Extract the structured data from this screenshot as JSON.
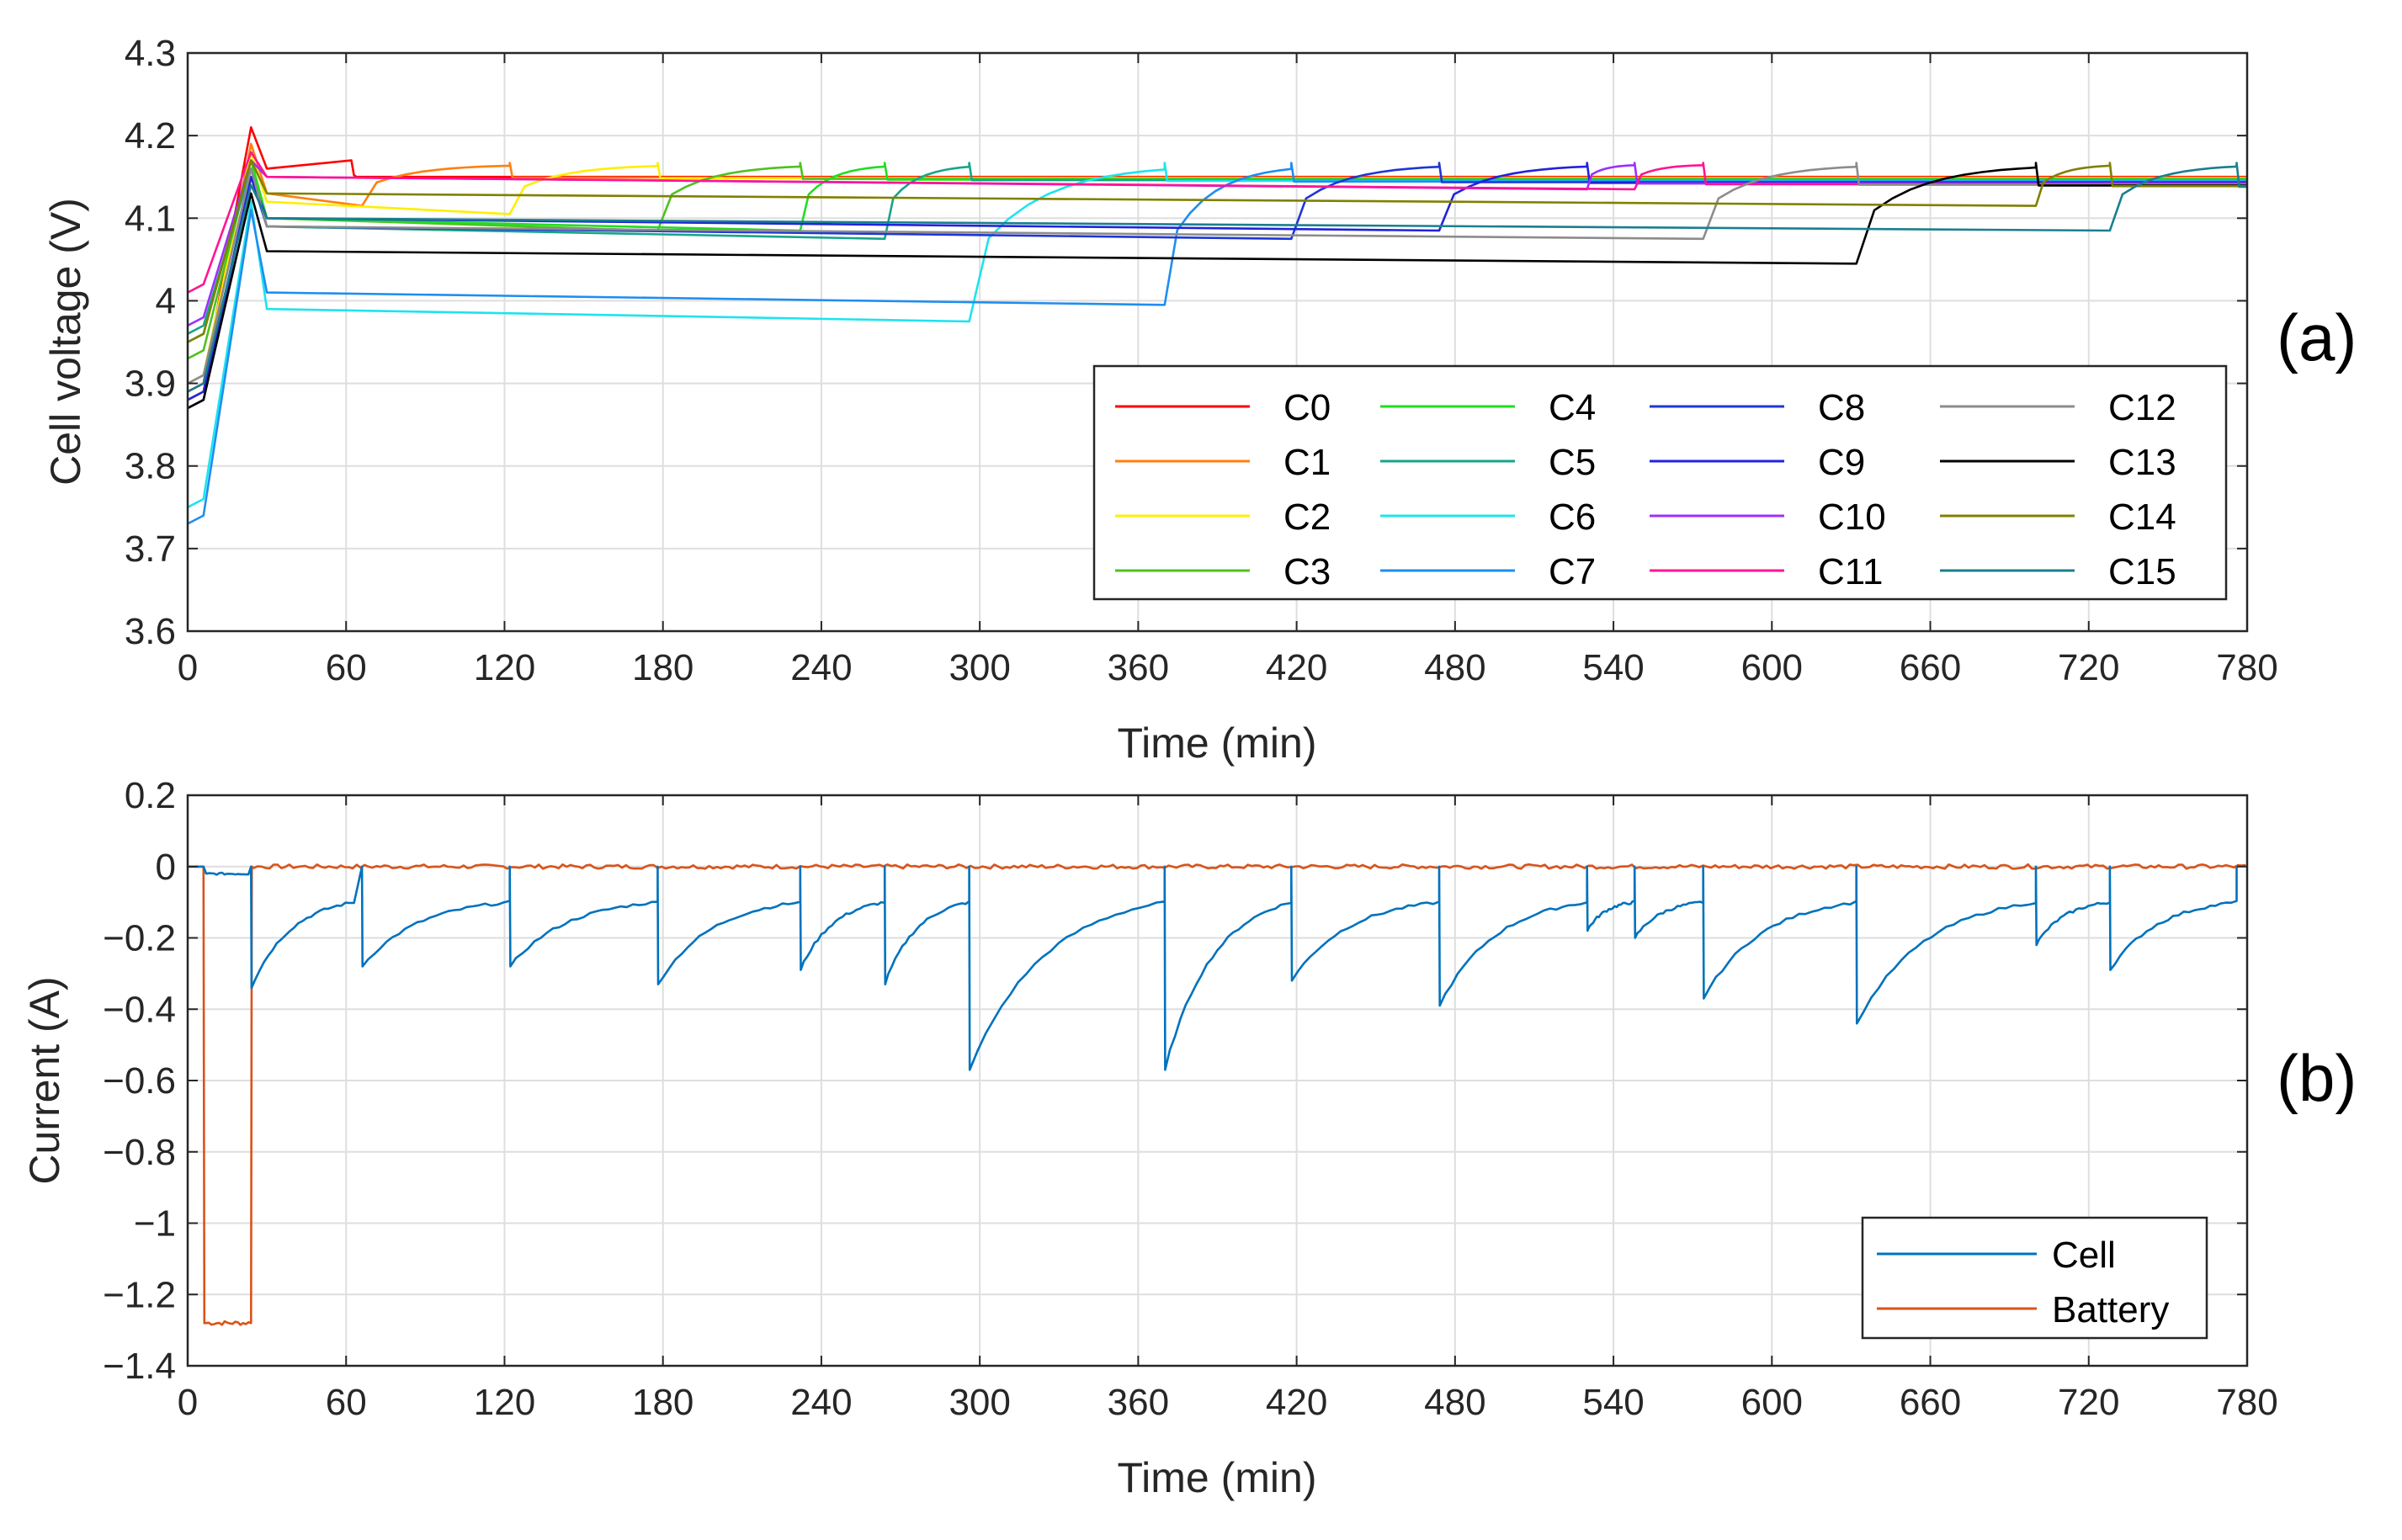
{
  "chart_data": [
    {
      "type": "line",
      "panel_label": "(a)",
      "xlabel": "Time (min)",
      "ylabel": "Cell voltage (V)",
      "xlim": [
        0,
        780
      ],
      "ylim": [
        3.6,
        4.3
      ],
      "xticks": [
        0,
        60,
        120,
        180,
        240,
        300,
        360,
        420,
        480,
        540,
        600,
        660,
        720,
        780
      ],
      "xtick_labels": [
        "0",
        "60",
        "120",
        "180",
        "240",
        "300",
        "360",
        "420",
        "480",
        "540",
        "600",
        "660",
        "720",
        "780"
      ],
      "yticks": [
        3.6,
        3.7,
        3.8,
        3.9,
        4.0,
        4.1,
        4.2,
        4.3
      ],
      "ytick_labels": [
        "3.6",
        "3.7",
        "3.8",
        "3.9",
        "4",
        "4.1",
        "4.2",
        "4.3"
      ],
      "grid": true,
      "legend_location": "lower-right",
      "legend_columns": 4,
      "series": [
        {
          "name": "C0",
          "color": "#ff0000",
          "start": 3.89,
          "peak": 4.21,
          "settle": 4.15,
          "charge_starts": [],
          "charge_ends": [
            63
          ]
        },
        {
          "name": "C1",
          "color": "#ff7f0e",
          "start": 3.88,
          "peak": 4.19,
          "settle": 4.12,
          "charge_starts": [
            66
          ],
          "charge_ends": [
            122
          ]
        },
        {
          "name": "C2",
          "color": "#ffee00",
          "start": 3.9,
          "peak": 4.18,
          "settle": 4.11,
          "charge_starts": [
            122
          ],
          "charge_ends": [
            178
          ]
        },
        {
          "name": "C3",
          "color": "#4dc21f",
          "start": 3.93,
          "peak": 4.17,
          "settle": 4.09,
          "charge_starts": [
            178
          ],
          "charge_ends": [
            232
          ]
        },
        {
          "name": "C4",
          "color": "#22dd22",
          "start": 3.95,
          "peak": 4.17,
          "settle": 4.09,
          "charge_starts": [
            232
          ],
          "charge_ends": [
            264
          ]
        },
        {
          "name": "C5",
          "color": "#17a589",
          "start": 3.96,
          "peak": 4.16,
          "settle": 4.08,
          "charge_starts": [
            264
          ],
          "charge_ends": [
            296
          ]
        },
        {
          "name": "C6",
          "color": "#1ee3ee",
          "start": 3.75,
          "peak": 4.12,
          "settle": 3.98,
          "charge_starts": [
            296
          ],
          "charge_ends": [
            370
          ]
        },
        {
          "name": "C7",
          "color": "#1f8df0",
          "start": 3.73,
          "peak": 4.11,
          "settle": 4.0,
          "charge_starts": [
            370
          ],
          "charge_ends": [
            418
          ]
        },
        {
          "name": "C8",
          "color": "#1f36d6",
          "start": 3.87,
          "peak": 4.15,
          "settle": 4.08,
          "charge_starts": [
            418
          ],
          "charge_ends": [
            474
          ]
        },
        {
          "name": "C9",
          "color": "#2222dd",
          "start": 3.88,
          "peak": 4.15,
          "settle": 4.09,
          "charge_starts": [
            474
          ],
          "charge_ends": [
            530
          ]
        },
        {
          "name": "C10",
          "color": "#9b30ff",
          "start": 3.97,
          "peak": 4.17,
          "settle": 4.14,
          "charge_starts": [
            530
          ],
          "charge_ends": [
            548
          ]
        },
        {
          "name": "C11",
          "color": "#ff1493",
          "start": 4.01,
          "peak": 4.18,
          "settle": 4.14,
          "charge_starts": [
            548
          ],
          "charge_ends": [
            574
          ]
        },
        {
          "name": "C12",
          "color": "#8c8c8c",
          "start": 3.9,
          "peak": 4.16,
          "settle": 4.08,
          "charge_starts": [
            574
          ],
          "charge_ends": [
            632
          ]
        },
        {
          "name": "C13",
          "color": "#000000",
          "start": 3.87,
          "peak": 4.13,
          "settle": 4.05,
          "charge_starts": [
            632
          ],
          "charge_ends": [
            700
          ]
        },
        {
          "name": "C14",
          "color": "#808000",
          "start": 3.95,
          "peak": 4.17,
          "settle": 4.12,
          "charge_starts": [
            700
          ],
          "charge_ends": [
            728
          ]
        },
        {
          "name": "C15",
          "color": "#1a7f8e",
          "start": 3.89,
          "peak": 4.14,
          "settle": 4.09,
          "charge_starts": [
            728
          ],
          "charge_ends": [
            776
          ]
        }
      ]
    },
    {
      "type": "line",
      "panel_label": "(b)",
      "xlabel": "Time (min)",
      "ylabel": "Current (A)",
      "xlim": [
        0,
        780
      ],
      "ylim": [
        -1.4,
        0.2
      ],
      "xticks": [
        0,
        60,
        120,
        180,
        240,
        300,
        360,
        420,
        480,
        540,
        600,
        660,
        720,
        780
      ],
      "xtick_labels": [
        "0",
        "60",
        "120",
        "180",
        "240",
        "300",
        "360",
        "420",
        "480",
        "540",
        "600",
        "660",
        "720",
        "780"
      ],
      "yticks": [
        -1.4,
        -1.2,
        -1.0,
        -0.8,
        -0.6,
        -0.4,
        -0.2,
        0,
        0.2
      ],
      "ytick_labels": [
        "−1.4",
        "−1.2",
        "−1",
        "−0.8",
        "−0.6",
        "−0.4",
        "−0.2",
        "0",
        "0.2"
      ],
      "grid": true,
      "legend_location": "lower-right",
      "series": [
        {
          "name": "Cell",
          "color": "#0072bd",
          "pre_charge_level": -0.02,
          "segments": [
            {
              "start": 24,
              "end": 63,
              "from": -0.34,
              "to": -0.1
            },
            {
              "start": 66,
              "end": 122,
              "from": -0.28,
              "to": -0.1
            },
            {
              "start": 122,
              "end": 178,
              "from": -0.28,
              "to": -0.1
            },
            {
              "start": 178,
              "end": 232,
              "from": -0.33,
              "to": -0.1
            },
            {
              "start": 232,
              "end": 264,
              "from": -0.29,
              "to": -0.1
            },
            {
              "start": 264,
              "end": 296,
              "from": -0.33,
              "to": -0.1
            },
            {
              "start": 296,
              "end": 370,
              "from": -0.57,
              "to": -0.1
            },
            {
              "start": 370,
              "end": 418,
              "from": -0.57,
              "to": -0.1
            },
            {
              "start": 418,
              "end": 474,
              "from": -0.32,
              "to": -0.1
            },
            {
              "start": 474,
              "end": 530,
              "from": -0.39,
              "to": -0.1
            },
            {
              "start": 530,
              "end": 548,
              "from": -0.18,
              "to": -0.1
            },
            {
              "start": 548,
              "end": 574,
              "from": -0.2,
              "to": -0.1
            },
            {
              "start": 574,
              "end": 632,
              "from": -0.37,
              "to": -0.1
            },
            {
              "start": 632,
              "end": 700,
              "from": -0.44,
              "to": -0.1
            },
            {
              "start": 700,
              "end": 728,
              "from": -0.22,
              "to": -0.1
            },
            {
              "start": 728,
              "end": 776,
              "from": -0.29,
              "to": -0.1
            }
          ]
        },
        {
          "name": "Battery",
          "color": "#d95319",
          "level": 0.0,
          "pulse_start": 6,
          "pulse_end": 24,
          "pulse_value": -1.28
        }
      ]
    }
  ]
}
